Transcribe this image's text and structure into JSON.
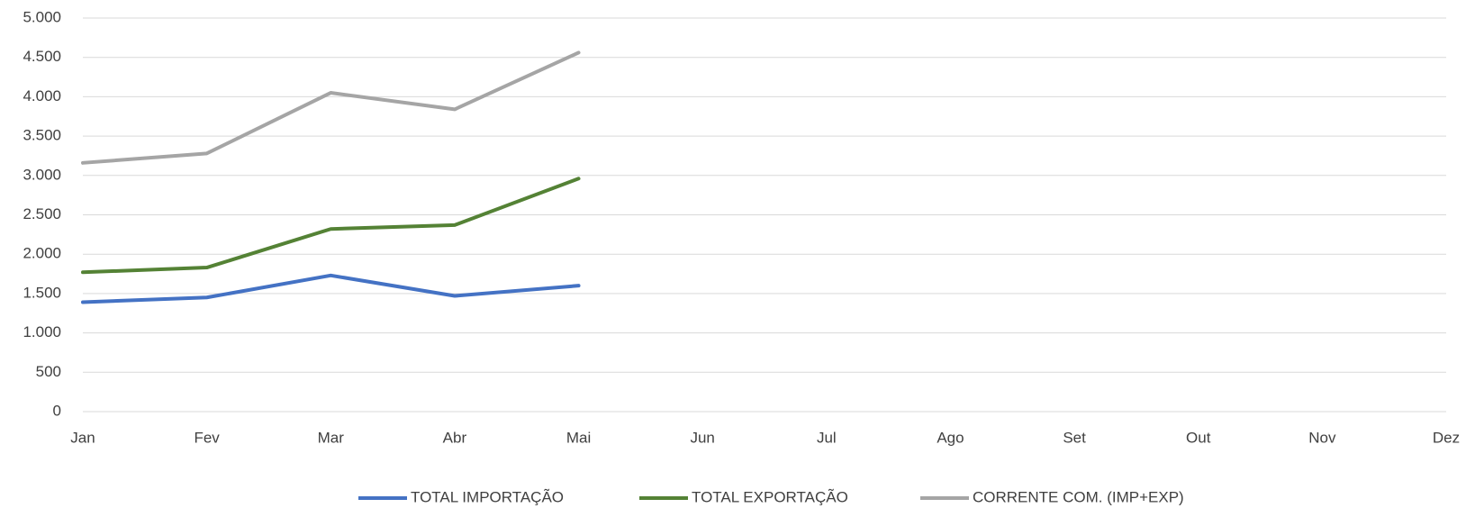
{
  "chart_data": {
    "type": "line",
    "categories": [
      "Jan",
      "Fev",
      "Mar",
      "Abr",
      "Mai",
      "Jun",
      "Jul",
      "Ago",
      "Set",
      "Out",
      "Nov",
      "Dez"
    ],
    "series": [
      {
        "name": "TOTAL IMPORTAÇÃO",
        "color": "#4472c4",
        "values": [
          1390,
          1450,
          1730,
          1470,
          1600,
          null,
          null,
          null,
          null,
          null,
          null,
          null
        ]
      },
      {
        "name": "TOTAL EXPORTAÇÃO",
        "color": "#548235",
        "values": [
          1770,
          1830,
          2320,
          2370,
          2960,
          null,
          null,
          null,
          null,
          null,
          null,
          null
        ]
      },
      {
        "name": "CORRENTE COM. (IMP+EXP)",
        "color": "#a5a5a5",
        "values": [
          3160,
          3280,
          4050,
          3840,
          4560,
          null,
          null,
          null,
          null,
          null,
          null,
          null
        ]
      }
    ],
    "ylim": [
      0,
      5000
    ],
    "yticks": [
      0,
      500,
      {
        "value": 1000,
        "label": "1.000"
      },
      {
        "value": 1500,
        "label": "1.500"
      },
      {
        "value": 2000,
        "label": "2.000"
      },
      {
        "value": 2500,
        "label": "2.500"
      },
      {
        "value": 3000,
        "label": "3.000"
      },
      {
        "value": 3500,
        "label": "3.500"
      },
      {
        "value": 4000,
        "label": "4.000"
      },
      {
        "value": 4500,
        "label": "4.500"
      },
      {
        "value": 5000,
        "label": "5.000"
      }
    ],
    "grid": true,
    "legend": "bottom"
  }
}
